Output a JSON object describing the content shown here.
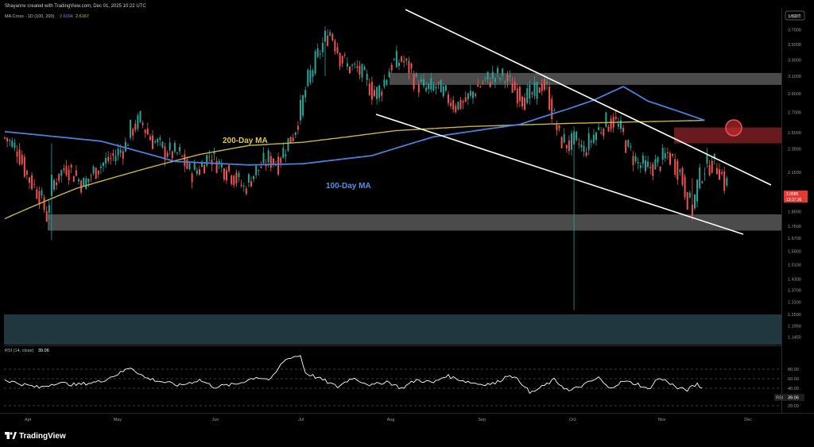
{
  "header": {
    "attribution": "Shayannv created with TradingView.com, Dec 01, 2025 10:22 UTC",
    "indicator_label": "MA Cross · 1D (100, 200)",
    "ma100_value": "2.6094",
    "ma200_value": "2.6167",
    "currency": "USDT"
  },
  "rsi": {
    "label": "RSI (14, close)",
    "value": "39.06",
    "tag": "RSI",
    "levels": [
      "80.00",
      "60.00",
      "40.00",
      "20.00"
    ]
  },
  "price_tag": {
    "price": "2.0585",
    "countdown": "13:37:36"
  },
  "footer": {
    "logo_text": "TradingView"
  },
  "colors": {
    "background": "#000000",
    "up_candle": "#26a69a",
    "down_candle": "#ef5350",
    "ma100": "#4b7fd9",
    "ma200": "#c8b447",
    "trendline": "#ffffff",
    "support_zone": "#6b6b6b",
    "resistance_zone": "#7a1f24",
    "lower_zone": "#2b4a55",
    "highlight_circle": "#d32f2f",
    "rsi_line": "#ffffff"
  },
  "chart_data": {
    "type": "candlestick",
    "annotations": [
      "200-Day MA",
      "100-Day MA"
    ],
    "y_ticks": [
      "3.9000",
      "3.7000",
      "3.5000",
      "3.3000",
      "3.1000",
      "2.9000",
      "2.7000",
      "2.5000",
      "2.3500",
      "2.1500",
      "1.9500",
      "1.8500",
      "1.7500",
      "1.6700",
      "1.5900",
      "1.5100",
      "1.4300",
      "1.3700",
      "1.3100",
      "1.2500",
      "1.1950",
      "1.1450"
    ],
    "x_ticks": [
      "Apr",
      "May",
      "Jun",
      "Jul",
      "Aug",
      "Sep",
      "Oct",
      "Nov",
      "Dec"
    ],
    "price_range": [
      1.12,
      4.0
    ],
    "rsi_range": [
      10,
      95
    ],
    "ma100_anchors": [
      [
        1,
        2.51
      ],
      [
        40,
        2.42
      ],
      [
        70,
        2.24
      ],
      [
        100,
        2.21
      ],
      [
        122,
        2.22
      ],
      [
        150,
        2.29
      ],
      [
        175,
        2.46
      ],
      [
        210,
        2.58
      ],
      [
        230,
        2.74
      ],
      [
        240,
        2.83
      ],
      [
        252,
        2.98
      ],
      [
        262,
        2.82
      ],
      [
        285,
        2.62
      ]
    ],
    "ma200_anchors": [
      [
        1,
        1.8
      ],
      [
        30,
        2.02
      ],
      [
        60,
        2.19
      ],
      [
        80,
        2.3
      ],
      [
        100,
        2.38
      ],
      [
        122,
        2.41
      ],
      [
        140,
        2.46
      ],
      [
        160,
        2.52
      ],
      [
        190,
        2.56
      ],
      [
        230,
        2.59
      ],
      [
        285,
        2.62
      ]
    ],
    "rsi_anchors": [
      [
        1,
        52
      ],
      [
        8,
        46
      ],
      [
        15,
        41
      ],
      [
        22,
        48
      ],
      [
        30,
        45
      ],
      [
        40,
        50
      ],
      [
        48,
        62
      ],
      [
        52,
        70
      ],
      [
        58,
        55
      ],
      [
        64,
        50
      ],
      [
        72,
        44
      ],
      [
        80,
        52
      ],
      [
        86,
        42
      ],
      [
        95,
        46
      ],
      [
        103,
        56
      ],
      [
        109,
        52
      ],
      [
        114,
        78
      ],
      [
        117,
        84
      ],
      [
        121,
        86
      ],
      [
        123,
        62
      ],
      [
        130,
        52
      ],
      [
        136,
        42
      ],
      [
        142,
        55
      ],
      [
        150,
        44
      ],
      [
        156,
        50
      ],
      [
        162,
        40
      ],
      [
        168,
        52
      ],
      [
        175,
        48
      ],
      [
        180,
        58
      ],
      [
        188,
        50
      ],
      [
        194,
        46
      ],
      [
        200,
        47
      ],
      [
        206,
        60
      ],
      [
        212,
        44
      ],
      [
        214,
        33
      ],
      [
        218,
        40
      ],
      [
        224,
        52
      ],
      [
        230,
        36
      ],
      [
        236,
        45
      ],
      [
        242,
        55
      ],
      [
        246,
        40
      ],
      [
        252,
        50
      ],
      [
        258,
        46
      ],
      [
        262,
        38
      ],
      [
        266,
        54
      ],
      [
        270,
        50
      ],
      [
        274,
        40
      ],
      [
        278,
        38
      ],
      [
        282,
        46
      ],
      [
        284,
        40
      ]
    ],
    "candle_anchors": [
      [
        1,
        2.45
      ],
      [
        6,
        2.35
      ],
      [
        10,
        2.12
      ],
      [
        15,
        1.98
      ],
      [
        18,
        1.82
      ],
      [
        20,
        2.05
      ],
      [
        26,
        2.2
      ],
      [
        33,
        2.05
      ],
      [
        38,
        2.18
      ],
      [
        45,
        2.28
      ],
      [
        50,
        2.38
      ],
      [
        52,
        2.52
      ],
      [
        56,
        2.62
      ],
      [
        60,
        2.45
      ],
      [
        66,
        2.33
      ],
      [
        72,
        2.3
      ],
      [
        76,
        2.15
      ],
      [
        80,
        2.18
      ],
      [
        84,
        2.3
      ],
      [
        88,
        2.22
      ],
      [
        94,
        2.12
      ],
      [
        98,
        2.02
      ],
      [
        102,
        2.14
      ],
      [
        108,
        2.26
      ],
      [
        112,
        2.23
      ],
      [
        115,
        2.38
      ],
      [
        118,
        2.48
      ],
      [
        121,
        2.72
      ],
      [
        124,
        3.05
      ],
      [
        128,
        3.35
      ],
      [
        131,
        3.58
      ],
      [
        133,
        3.68
      ],
      [
        135,
        3.52
      ],
      [
        137,
        3.35
      ],
      [
        140,
        3.22
      ],
      [
        144,
        3.18
      ],
      [
        148,
        3.05
      ],
      [
        151,
        2.88
      ],
      [
        154,
        2.98
      ],
      [
        158,
        3.25
      ],
      [
        162,
        3.3
      ],
      [
        165,
        3.2
      ],
      [
        168,
        3.03
      ],
      [
        172,
        2.95
      ],
      [
        176,
        2.98
      ],
      [
        180,
        2.88
      ],
      [
        184,
        2.77
      ],
      [
        188,
        2.82
      ],
      [
        192,
        2.95
      ],
      [
        196,
        3.05
      ],
      [
        200,
        3.1
      ],
      [
        204,
        3.08
      ],
      [
        208,
        2.95
      ],
      [
        212,
        2.85
      ],
      [
        216,
        2.9
      ],
      [
        219,
        3.02
      ],
      [
        221,
        2.95
      ],
      [
        223,
        2.72
      ],
      [
        226,
        2.45
      ],
      [
        230,
        2.38
      ],
      [
        233,
        2.42
      ],
      [
        236,
        2.33
      ],
      [
        240,
        2.48
      ],
      [
        244,
        2.58
      ],
      [
        248,
        2.62
      ],
      [
        251,
        2.52
      ],
      [
        254,
        2.35
      ],
      [
        258,
        2.22
      ],
      [
        262,
        2.18
      ],
      [
        266,
        2.22
      ],
      [
        270,
        2.3
      ],
      [
        272,
        2.25
      ],
      [
        275,
        2.15
      ],
      [
        278,
        1.95
      ],
      [
        280,
        1.86
      ],
      [
        282,
        2.05
      ],
      [
        285,
        2.2
      ],
      [
        288,
        2.23
      ],
      [
        291,
        2.18
      ],
      [
        293,
        2.06
      ]
    ],
    "spikes": [
      [
        20,
        1.66,
        2.4
      ],
      [
        232,
        1.27,
        2.56
      ],
      [
        280,
        1.82,
        2.1
      ],
      [
        131,
        3.1,
        3.75
      ]
    ]
  }
}
